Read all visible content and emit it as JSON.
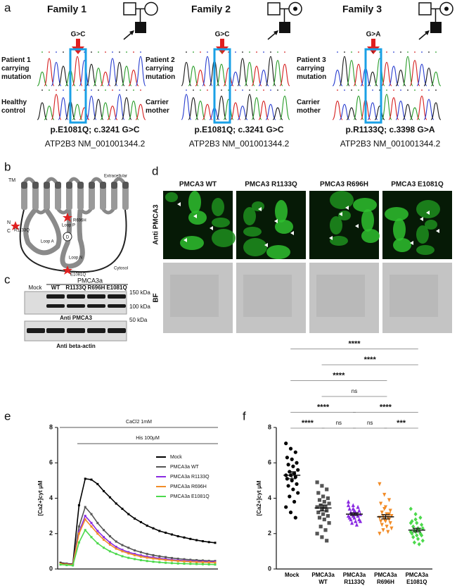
{
  "panel_a": {
    "label": "a",
    "families": [
      {
        "title": "Family 1",
        "mutation": "G>C",
        "upper_label": "Patient 1 carrying mutation",
        "lower_label": "Healthy control",
        "protein": "p.E1081Q; c.3241 G>C",
        "transcript": "ATP2B3 NM_001001344.2"
      },
      {
        "title": "Family 2",
        "mutation": "G>C",
        "upper_label": "Patient 2 carrying mutation",
        "lower_label": "Carrier mother",
        "protein": "p.E1081Q; c.3241 G>C",
        "transcript": "ATP2B3 NM_001001344.2"
      },
      {
        "title": "Family 3",
        "mutation": "G>A",
        "upper_label": "Patient 3 carrying mutation",
        "lower_label": "Carrier mother",
        "protein": "p.R1133Q; c.3398 G>A",
        "transcript": "ATP2B3 NM_001001344.2"
      }
    ]
  },
  "panel_b": {
    "label": "b",
    "tm": "TM",
    "extracellular": "Extracellular",
    "cytosol": "Cytosol",
    "n_term": "N",
    "c_term": "C",
    "site_1": "R1133Q",
    "site_2": "R696H",
    "site_3": "E1081Q",
    "loop_a": "Loop A",
    "loop_p": "Loop P",
    "loop_n": "Loop N",
    "domain_d": "D"
  },
  "panel_c": {
    "label": "c",
    "group": "PMCA3a",
    "lanes": [
      "Mock",
      "WT",
      "R1133Q",
      "R696H",
      "E1081Q"
    ],
    "markers": [
      "150 kDa",
      "100 kDa",
      "50 kDa"
    ],
    "blot_1": "Anti PMCA3",
    "blot_2": "Anti beta-actin"
  },
  "panel_d": {
    "label": "d",
    "columns": [
      "PMCA3 WT",
      "PMCA3 R1133Q",
      "PMCA3 R696H",
      "PMCA3 E1081Q"
    ],
    "rows": [
      "Anti PMCA3",
      "BF"
    ]
  },
  "chart_data": [
    {
      "type": "line",
      "panel_label": "e",
      "y_label": "[Ca2+]cyt μM",
      "annotations": [
        "CaCl2 1mM",
        "His 100μM"
      ],
      "categories": [
        null,
        null,
        null,
        null,
        null,
        null,
        null,
        null,
        null,
        null,
        null,
        null,
        null,
        null,
        null,
        null,
        null,
        null,
        null,
        null,
        null,
        null,
        null,
        null,
        null,
        null
      ],
      "ylim": [
        0,
        8
      ],
      "yticks": [
        0,
        2,
        4,
        6,
        8
      ],
      "legend": "upper right",
      "series": [
        {
          "name": "Mock",
          "color": "#000000",
          "values": [
            0.35,
            0.3,
            0.28,
            3.6,
            5.1,
            5.05,
            4.8,
            4.4,
            4.05,
            3.7,
            3.4,
            3.1,
            2.85,
            2.65,
            2.45,
            2.3,
            2.15,
            2.05,
            1.95,
            1.85,
            1.78,
            1.7,
            1.63,
            1.57,
            1.52,
            1.48
          ]
        },
        {
          "name": "PMCA3a WT",
          "color": "#555555",
          "values": [
            0.3,
            0.28,
            0.25,
            2.4,
            3.5,
            3.1,
            2.6,
            2.2,
            1.85,
            1.55,
            1.35,
            1.2,
            1.05,
            0.95,
            0.85,
            0.78,
            0.72,
            0.67,
            0.62,
            0.58,
            0.55,
            0.52,
            0.5,
            0.48,
            0.46,
            0.45
          ]
        },
        {
          "name": "PMCA3a R1133Q",
          "color": "#8a2be2",
          "values": [
            0.3,
            0.27,
            0.25,
            2.1,
            3.0,
            2.6,
            2.15,
            1.8,
            1.5,
            1.25,
            1.08,
            0.95,
            0.85,
            0.77,
            0.7,
            0.65,
            0.6,
            0.56,
            0.52,
            0.49,
            0.47,
            0.45,
            0.43,
            0.42,
            0.41,
            0.4
          ]
        },
        {
          "name": "PMCA3a R696H",
          "color": "#f28c28",
          "values": [
            0.3,
            0.26,
            0.24,
            2.0,
            2.8,
            2.4,
            2.0,
            1.65,
            1.38,
            1.15,
            1.0,
            0.88,
            0.78,
            0.7,
            0.64,
            0.59,
            0.55,
            0.51,
            0.48,
            0.45,
            0.43,
            0.41,
            0.39,
            0.38,
            0.37,
            0.36
          ]
        },
        {
          "name": "PMCA3a E1081Q",
          "color": "#4cd94c",
          "values": [
            0.25,
            0.22,
            0.2,
            1.5,
            2.2,
            1.8,
            1.45,
            1.2,
            1.0,
            0.85,
            0.72,
            0.63,
            0.56,
            0.5,
            0.45,
            0.41,
            0.38,
            0.35,
            0.33,
            0.31,
            0.3,
            0.29,
            0.28,
            0.27,
            0.26,
            0.25
          ]
        }
      ]
    },
    {
      "type": "strip",
      "panel_label": "f",
      "y_label": "[Ca2+]cyt μM",
      "categories": [
        "Mock",
        "PMCA3a WT",
        "PMCA3a R1133Q",
        "PMCA3a R696H",
        "PMCA3a E1081Q"
      ],
      "ylim": [
        0,
        8
      ],
      "yticks": [
        0,
        2,
        4,
        6,
        8
      ],
      "groups": [
        {
          "color": "#000000",
          "marker": "circle",
          "mean": 5.3,
          "sem": 0.2,
          "values": [
            7.1,
            6.8,
            6.6,
            6.3,
            6.2,
            6.0,
            5.9,
            5.8,
            5.6,
            5.5,
            5.4,
            5.3,
            5.3,
            5.2,
            5.1,
            5.0,
            4.8,
            4.7,
            4.5,
            4.3,
            4.1,
            3.8,
            3.5,
            3.2,
            2.9
          ]
        },
        {
          "color": "#555555",
          "marker": "square",
          "mean": 3.45,
          "sem": 0.17,
          "values": [
            4.9,
            4.7,
            4.5,
            4.3,
            4.1,
            4.0,
            3.9,
            3.8,
            3.7,
            3.6,
            3.5,
            3.5,
            3.4,
            3.3,
            3.2,
            3.1,
            3.0,
            2.9,
            2.8,
            2.6,
            2.4,
            2.2,
            2.0,
            1.8,
            1.6
          ]
        },
        {
          "color": "#8a2be2",
          "marker": "triangle-up",
          "mean": 3.1,
          "sem": 0.07,
          "values": [
            3.8,
            3.6,
            3.5,
            3.4,
            3.3,
            3.3,
            3.2,
            3.2,
            3.1,
            3.1,
            3.1,
            3.0,
            3.0,
            3.0,
            2.9,
            2.9,
            2.8,
            2.8,
            2.7,
            2.7,
            2.6,
            2.5,
            3.6,
            3.4
          ]
        },
        {
          "color": "#f28c28",
          "marker": "triangle-down",
          "mean": 2.95,
          "sem": 0.12,
          "values": [
            4.8,
            4.2,
            3.9,
            3.7,
            3.5,
            3.3,
            3.2,
            3.1,
            3.0,
            3.0,
            2.9,
            2.9,
            2.8,
            2.8,
            2.7,
            2.7,
            2.6,
            2.5,
            2.4,
            2.3,
            2.2,
            2.1,
            2.0,
            3.4,
            3.1
          ]
        },
        {
          "color": "#4cd94c",
          "marker": "diamond",
          "mean": 2.2,
          "sem": 0.1,
          "values": [
            3.4,
            3.1,
            2.9,
            2.7,
            2.6,
            2.5,
            2.4,
            2.3,
            2.3,
            2.2,
            2.2,
            2.1,
            2.1,
            2.0,
            2.0,
            1.9,
            1.9,
            1.8,
            1.7,
            1.6,
            1.5,
            1.4,
            2.6,
            2.8
          ]
        }
      ],
      "comparisons": [
        {
          "between": [
            0,
            1
          ],
          "label": "****"
        },
        {
          "between": [
            1,
            2
          ],
          "label": "ns"
        },
        {
          "between": [
            2,
            3
          ],
          "label": "ns"
        },
        {
          "between": [
            3,
            4
          ],
          "label": "***"
        },
        {
          "between": [
            0,
            2
          ],
          "label": "****"
        },
        {
          "between": [
            2,
            4
          ],
          "label": "****"
        },
        {
          "between": [
            1,
            3
          ],
          "label": "ns"
        },
        {
          "between": [
            0,
            3
          ],
          "label": "****"
        },
        {
          "between": [
            1,
            4
          ],
          "label": "****"
        },
        {
          "between": [
            0,
            4
          ],
          "label": "****"
        }
      ]
    }
  ]
}
